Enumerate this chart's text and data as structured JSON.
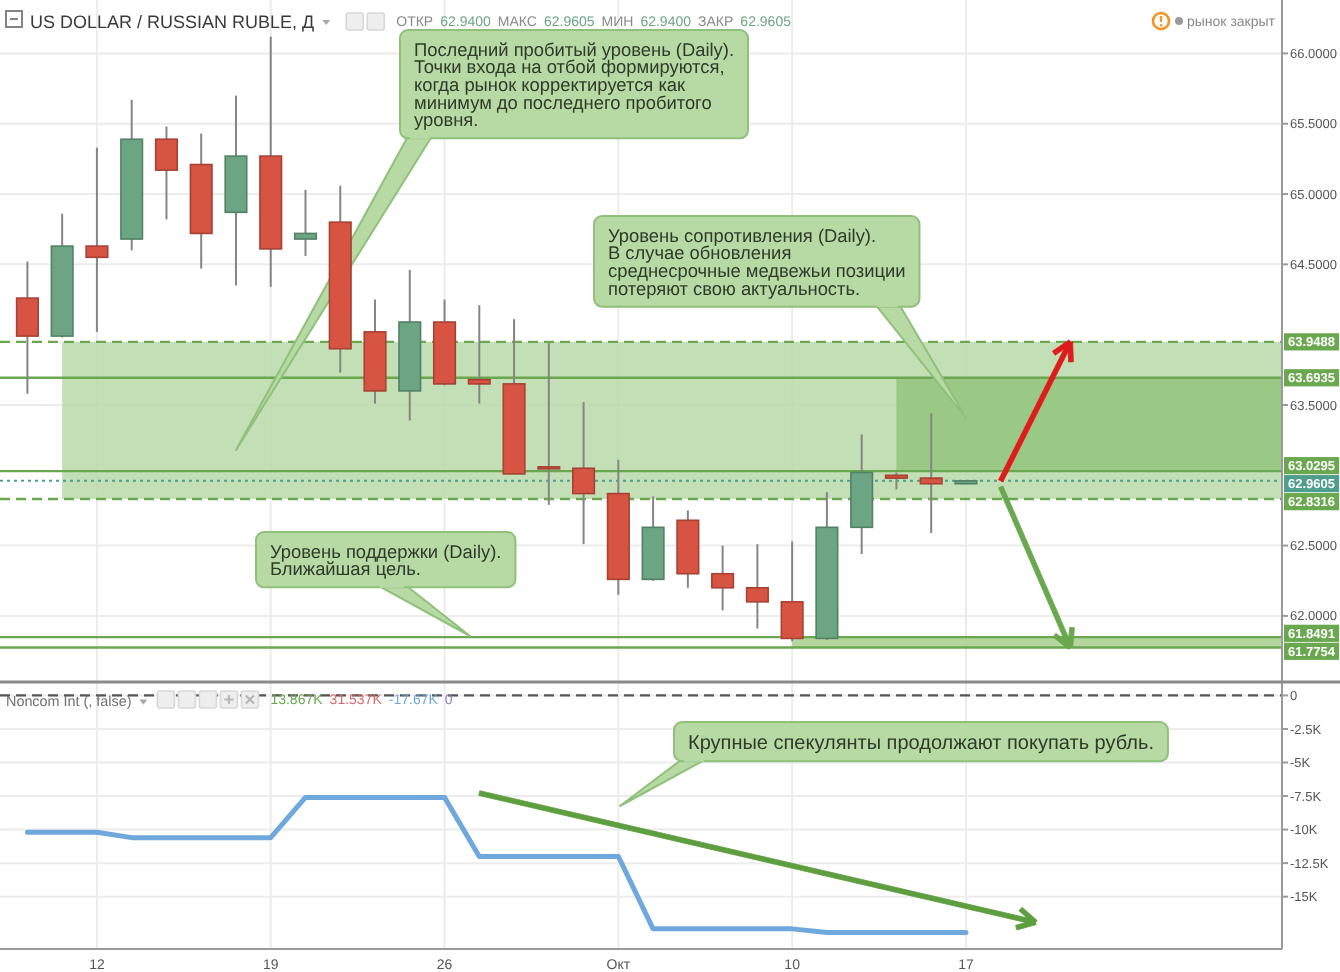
{
  "chart_data": [
    {
      "type": "candlestick",
      "title": "US DOLLAR / RUSSIAN RUBLE, Д",
      "subtitle": "ОТКР 62.9400 МАКС 62.9605 МИН 62.9400 ЗАКР 62.9605",
      "annotations": [
        "рынок закрыт",
        "Последний пробитый уровень (Daily). Точки входа на отбой формируются, когда рынок корректируется как минимум до последнего пробитого уровня.",
        "Уровень сопротивления (Daily). В случае обновления среднесрочные медвежьи позиции потеряют свою актуальность.",
        "Уровень поддержки (Daily). Ближайшая цель."
      ],
      "categories": [
        null,
        null,
        null,
        null,
        null,
        null,
        null,
        null,
        null,
        null,
        null,
        null,
        null,
        null,
        null,
        null,
        null,
        null,
        null,
        null,
        null,
        null,
        null,
        null,
        null,
        null,
        null,
        null,
        null,
        null,
        null,
        null,
        null,
        null,
        null,
        null,
        null
      ],
      "ohlc": [
        [
          64.26,
          64.52,
          63.58,
          63.99
        ],
        [
          63.99,
          64.86,
          63.98,
          64.63
        ],
        [
          64.63,
          65.33,
          64.02,
          64.55
        ],
        [
          64.68,
          65.67,
          64.6,
          65.39
        ],
        [
          65.39,
          65.48,
          64.82,
          65.17
        ],
        [
          65.21,
          65.43,
          64.47,
          64.72
        ],
        [
          64.87,
          65.7,
          64.35,
          65.27
        ],
        [
          65.27,
          66.12,
          64.34,
          64.61
        ],
        [
          64.68,
          65.03,
          64.56,
          64.72
        ],
        [
          64.8,
          65.06,
          63.73,
          63.9
        ],
        [
          64.02,
          64.25,
          63.51,
          63.6
        ],
        [
          63.6,
          64.46,
          63.39,
          64.09
        ],
        [
          64.09,
          64.25,
          63.64,
          63.65
        ],
        [
          63.68,
          64.21,
          63.51,
          63.65
        ],
        [
          63.65,
          64.11,
          63.01,
          63.01
        ],
        [
          63.06,
          63.94,
          62.79,
          63.05
        ],
        [
          63.05,
          63.52,
          62.51,
          62.87
        ],
        [
          62.87,
          63.11,
          62.15,
          62.26
        ],
        [
          62.26,
          62.85,
          62.25,
          62.63
        ],
        [
          62.68,
          62.75,
          62.2,
          62.3
        ],
        [
          62.3,
          62.5,
          62.04,
          62.2
        ],
        [
          62.2,
          62.51,
          61.91,
          62.1
        ],
        [
          62.1,
          62.53,
          61.82,
          61.84
        ],
        [
          61.84,
          62.88,
          61.83,
          62.63
        ],
        [
          62.63,
          63.29,
          62.44,
          63.02
        ],
        [
          63.0,
          63.02,
          62.9,
          62.98
        ],
        [
          62.98,
          63.44,
          62.59,
          62.94
        ],
        [
          62.94,
          62.9605,
          62.94,
          62.9605
        ],
        null,
        null,
        null,
        null,
        null,
        null,
        null,
        null,
        null
      ],
      "colors": [
        "#d75442",
        "#6ba583",
        "#d75442",
        "#6ba583",
        "#d75442",
        "#d75442",
        "#6ba583",
        "#d75442",
        "#6ba583",
        "#d75442",
        "#d75442",
        "#6ba583",
        "#d75442",
        "#d75442",
        "#d75442",
        "#d75442",
        "#d75442",
        "#d75442",
        "#6ba583",
        "#d75442",
        "#d75442",
        "#d75442",
        "#d75442",
        "#6ba583",
        "#6ba583",
        "#d75442",
        "#d75442",
        "#6ba583",
        null,
        null,
        null,
        null,
        null,
        null,
        null,
        null,
        null
      ],
      "ylim": [
        61.53,
        66.38
      ],
      "yticks": [
        {
          "value": 62,
          "label": "62.0000"
        },
        {
          "value": 62.5,
          "label": "62.5000"
        },
        {
          "value": 63.5,
          "label": "63.5000"
        },
        {
          "value": 64.5,
          "label": "64.5000"
        },
        {
          "value": 65,
          "label": "65.0000"
        },
        {
          "value": 65.5,
          "label": "65.5000"
        },
        {
          "value": 66,
          "label": "66.0000"
        }
      ],
      "ref_lines": [
        {
          "axis": "y",
          "value": 63.9488,
          "label": "63.9488",
          "color": "#6aa84f",
          "line_style": "dashed"
        },
        {
          "axis": "y",
          "value": 63.6935,
          "label": "63.6935",
          "color": "#6aa84f",
          "line_style": "solid"
        },
        {
          "axis": "y",
          "value": 63.0295,
          "label": "63.0295",
          "color": "#6aa84f",
          "line_style": "solid"
        },
        {
          "axis": "y",
          "value": 62.9605,
          "label": "62.9605",
          "color": "#4f9d8c",
          "line_style": "dotted"
        },
        {
          "axis": "y",
          "value": 62.8316,
          "label": "62.8316",
          "color": "#6aa84f",
          "line_style": "dashed"
        },
        {
          "axis": "y",
          "value": 61.8491,
          "label": "61.8491",
          "color": "#6aa84f",
          "line_style": "solid"
        },
        {
          "axis": "y",
          "value": 61.7754,
          "label": "61.7754",
          "color": "#6aa84f",
          "line_style": "solid"
        }
      ],
      "bands": [
        {
          "axis": "y",
          "from": 62.8316,
          "to": 63.9488,
          "color": "#b9d9a9"
        },
        {
          "axis": "y",
          "from": 63.0295,
          "to": 63.6935,
          "color": "#93c47d"
        },
        {
          "axis": "y",
          "from": 61.7754,
          "to": 61.8491,
          "color": "#a8d08d"
        }
      ],
      "grid": true
    },
    {
      "type": "line",
      "title": "Noncom Int (, false)",
      "subtitle": "13.867K 31.537K -17.67K 0",
      "annotations": [
        "Крупные спекулянты продолжают покупать рубль."
      ],
      "categories": [
        null,
        null,
        "12",
        null,
        null,
        null,
        null,
        "19",
        null,
        null,
        null,
        null,
        "26",
        null,
        null,
        null,
        null,
        "Окт",
        null,
        null,
        null,
        null,
        "10",
        null,
        null,
        null,
        null,
        "17",
        null,
        null,
        null,
        null,
        null,
        null,
        null,
        null,
        null
      ],
      "series": [
        {
          "color": "#6fa8dc",
          "values": [
            -10200,
            -10200,
            -10200,
            -10600,
            -10600,
            -10600,
            -10600,
            -10600,
            -7600,
            -7600,
            -7600,
            -7600,
            -7600,
            -12000,
            -12000,
            -12000,
            -12000,
            -12000,
            -17400,
            -17400,
            -17400,
            -17400,
            -17400,
            -17670,
            -17670,
            -17670,
            -17670,
            -17670,
            null,
            null,
            null,
            null,
            null,
            null,
            null,
            null,
            null
          ]
        }
      ],
      "ylim": [
        -18900,
        1000
      ],
      "yticks": [
        0,
        {
          "value": -2500,
          "label": "-2.5K"
        },
        {
          "value": -5000,
          "label": "-5K"
        },
        {
          "value": -7500,
          "label": "-7.5K"
        },
        {
          "value": -10000,
          "label": "-10K"
        },
        {
          "value": -12500,
          "label": "-12.5K"
        },
        {
          "value": -15000,
          "label": "-15K"
        }
      ],
      "ref_lines": [
        {
          "axis": "y",
          "value": 0,
          "color": "#555555",
          "line_style": "dashed"
        }
      ],
      "grid": true
    }
  ]
}
